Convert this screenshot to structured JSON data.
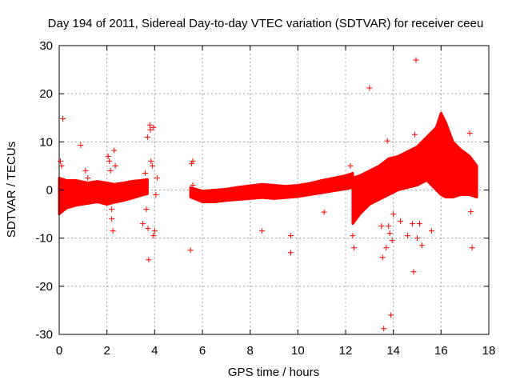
{
  "chart_data": {
    "type": "scatter",
    "title": "Day 194 of 2011, Sidereal Day-to-day VTEC variation (SDTVAR) for receiver ceeu",
    "xlabel": "GPS time / hours",
    "ylabel": "SDTVAR / TECUs",
    "xlim": [
      0,
      18
    ],
    "ylim": [
      -30,
      30
    ],
    "xticks": [
      "0",
      "2",
      "4",
      "6",
      "8",
      "10",
      "12",
      "14",
      "16",
      "18"
    ],
    "yticks": [
      "30",
      "20",
      "10",
      "0",
      "-10",
      "-20",
      "-30"
    ],
    "grid": true,
    "legend": "none",
    "marker": "+",
    "marker_color": "#ff0000",
    "dense_bands": [
      {
        "x": [
          0.0,
          0.3,
          0.7,
          1.2,
          1.6,
          2.0,
          2.3,
          2.7,
          3.0,
          3.4,
          3.7
        ],
        "upper": [
          2.5,
          2.0,
          2.0,
          1.5,
          1.8,
          1.5,
          1.2,
          1.5,
          1.8,
          2.0,
          2.2
        ],
        "lower": [
          -5.0,
          -3.8,
          -3.2,
          -2.8,
          -2.5,
          -3.0,
          -2.6,
          -2.2,
          -1.8,
          -1.2,
          -0.8
        ]
      },
      {
        "x": [
          5.5,
          6.0,
          6.5,
          7.0,
          7.5,
          8.0,
          8.5,
          9.0,
          9.5,
          10.0,
          10.5,
          11.0,
          11.5,
          12.0,
          12.3
        ],
        "upper": [
          0.5,
          -0.2,
          0.0,
          0.2,
          0.6,
          0.9,
          1.2,
          1.0,
          0.8,
          1.0,
          1.4,
          2.0,
          2.5,
          3.0,
          3.5
        ],
        "lower": [
          -1.5,
          -2.5,
          -2.5,
          -2.2,
          -2.0,
          -1.8,
          -1.6,
          -1.8,
          -1.6,
          -1.4,
          -1.0,
          -0.6,
          -0.2,
          0.2,
          0.5
        ]
      },
      {
        "x": [
          12.3,
          12.6,
          13.0,
          13.4,
          13.8,
          14.2,
          14.6,
          15.0,
          15.4,
          15.8,
          16.0,
          16.2,
          16.5,
          16.8,
          17.2,
          17.5
        ],
        "upper": [
          2.5,
          3.0,
          4.0,
          5.0,
          6.5,
          7.0,
          8.0,
          9.0,
          11.0,
          13.0,
          16.0,
          14.0,
          10.0,
          8.5,
          7.0,
          5.0
        ],
        "lower": [
          -7.0,
          -5.0,
          -3.0,
          -2.0,
          -1.0,
          0.0,
          0.5,
          1.0,
          2.0,
          0.0,
          -1.0,
          -1.5,
          -1.5,
          -1.0,
          -1.0,
          -1.5
        ]
      }
    ],
    "outliers": [
      {
        "x": 0.05,
        "y": 6.0
      },
      {
        "x": 0.1,
        "y": 5.0
      },
      {
        "x": 0.15,
        "y": 14.8
      },
      {
        "x": 0.9,
        "y": 9.3
      },
      {
        "x": 1.1,
        "y": 4.0
      },
      {
        "x": 1.2,
        "y": 2.5
      },
      {
        "x": 2.05,
        "y": 7.0
      },
      {
        "x": 2.1,
        "y": 6.0
      },
      {
        "x": 2.15,
        "y": 4.0
      },
      {
        "x": 2.2,
        "y": -4.0
      },
      {
        "x": 2.25,
        "y": -8.5
      },
      {
        "x": 2.3,
        "y": 8.2
      },
      {
        "x": 2.35,
        "y": 5.0
      },
      {
        "x": 2.2,
        "y": -6.0
      },
      {
        "x": 3.5,
        "y": -7.0
      },
      {
        "x": 3.6,
        "y": 3.5
      },
      {
        "x": 3.65,
        "y": -4.0
      },
      {
        "x": 3.7,
        "y": 11.0
      },
      {
        "x": 3.72,
        "y": -8.0
      },
      {
        "x": 3.75,
        "y": -14.5
      },
      {
        "x": 3.8,
        "y": 13.5
      },
      {
        "x": 3.82,
        "y": 12.5
      },
      {
        "x": 3.85,
        "y": 6.0
      },
      {
        "x": 3.9,
        "y": 5.0
      },
      {
        "x": 3.95,
        "y": 13.0
      },
      {
        "x": 3.95,
        "y": -9.5
      },
      {
        "x": 4.0,
        "y": -8.5
      },
      {
        "x": 4.05,
        "y": -1.0
      },
      {
        "x": 4.1,
        "y": 2.5
      },
      {
        "x": 5.5,
        "y": -12.5
      },
      {
        "x": 5.55,
        "y": 5.5
      },
      {
        "x": 5.6,
        "y": 6.0
      },
      {
        "x": 5.6,
        "y": 1.0
      },
      {
        "x": 8.5,
        "y": -8.5
      },
      {
        "x": 9.7,
        "y": -9.5
      },
      {
        "x": 9.7,
        "y": -13.0
      },
      {
        "x": 11.1,
        "y": -4.6
      },
      {
        "x": 12.2,
        "y": 5.0
      },
      {
        "x": 12.3,
        "y": -9.5
      },
      {
        "x": 12.35,
        "y": -12.0
      },
      {
        "x": 13.0,
        "y": 21.2
      },
      {
        "x": 13.5,
        "y": -7.5
      },
      {
        "x": 13.55,
        "y": -14.0
      },
      {
        "x": 13.6,
        "y": -28.8
      },
      {
        "x": 13.7,
        "y": -12.0
      },
      {
        "x": 13.75,
        "y": 10.2
      },
      {
        "x": 13.8,
        "y": -7.5
      },
      {
        "x": 13.85,
        "y": -9.0
      },
      {
        "x": 13.9,
        "y": -26.0
      },
      {
        "x": 13.95,
        "y": -10.5
      },
      {
        "x": 14.0,
        "y": -5.0
      },
      {
        "x": 14.3,
        "y": -6.5
      },
      {
        "x": 14.6,
        "y": -9.5
      },
      {
        "x": 14.8,
        "y": -7.0
      },
      {
        "x": 14.85,
        "y": -17.0
      },
      {
        "x": 14.9,
        "y": 11.5
      },
      {
        "x": 14.95,
        "y": 27.0
      },
      {
        "x": 15.0,
        "y": -10.0
      },
      {
        "x": 15.1,
        "y": -7.0
      },
      {
        "x": 15.2,
        "y": -11.5
      },
      {
        "x": 15.6,
        "y": -8.5
      },
      {
        "x": 17.2,
        "y": 11.8
      },
      {
        "x": 17.25,
        "y": -4.5
      },
      {
        "x": 17.3,
        "y": -12.0
      }
    ]
  }
}
